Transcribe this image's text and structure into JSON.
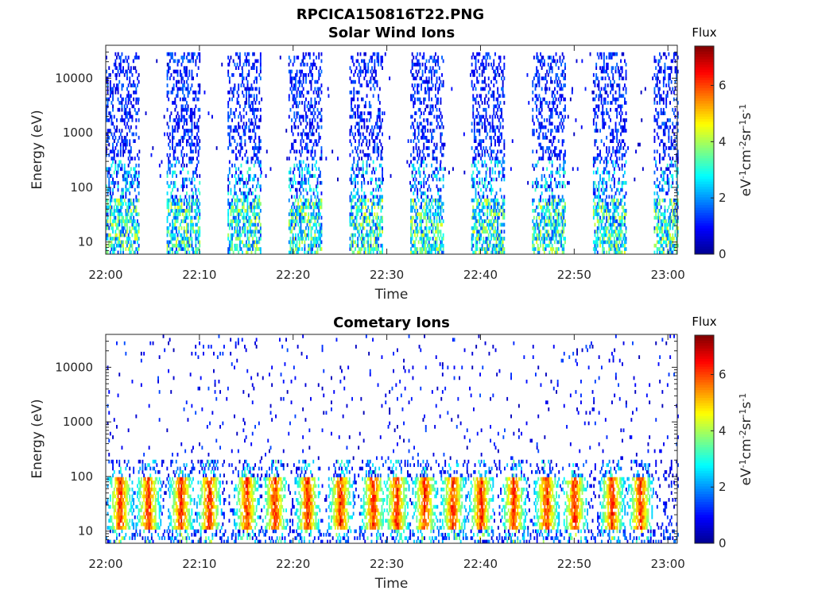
{
  "figure_title": "RPCICA150816T22.PNG",
  "colors": {
    "axis": "#262626",
    "colormap": "jet",
    "colormap_stops": [
      "#00008f",
      "#0000ff",
      "#0080ff",
      "#00ffff",
      "#80ff80",
      "#ffff00",
      "#ff8000",
      "#ff0000",
      "#800000"
    ]
  },
  "chart_data": [
    {
      "type": "heatmap",
      "title": "Solar Wind Ions",
      "xlabel": "Time",
      "ylabel": "Energy (eV)",
      "x_range_minutes": [
        0,
        61
      ],
      "x_ticks": [
        {
          "minute": 0,
          "label": "22:00"
        },
        {
          "minute": 10,
          "label": "22:10"
        },
        {
          "minute": 20,
          "label": "22:20"
        },
        {
          "minute": 30,
          "label": "22:30"
        },
        {
          "minute": 40,
          "label": "22:40"
        },
        {
          "minute": 50,
          "label": "22:50"
        },
        {
          "minute": 60,
          "label": "23:00"
        }
      ],
      "y_scale": "log",
      "y_range": [
        6,
        40000
      ],
      "y_ticks": [
        {
          "value": 10,
          "label": "10"
        },
        {
          "value": 100,
          "label": "100"
        },
        {
          "value": 1000,
          "label": "1000"
        },
        {
          "value": 10000,
          "label": "10000"
        }
      ],
      "colorbar": {
        "label": "Flux",
        "units": "eV^-1 cm^-2 sr^-1 s^-1",
        "range": [
          0,
          7.4
        ],
        "ticks": [
          "0",
          "2",
          "4",
          "6"
        ]
      },
      "bursts_start_minute": [
        0,
        6.5,
        13,
        19.5,
        26,
        32.5,
        39,
        45.5,
        52,
        58.5
      ],
      "burst_duration_minutes": 3.5,
      "burst_energy_range_eV": [
        6,
        30000
      ],
      "burst_flux_range": [
        0.5,
        4.5
      ]
    },
    {
      "type": "heatmap",
      "title": "Cometary Ions",
      "xlabel": "Time",
      "ylabel": "Energy (eV)",
      "x_range_minutes": [
        0,
        61
      ],
      "x_ticks": [
        {
          "minute": 0,
          "label": "22:00"
        },
        {
          "minute": 10,
          "label": "22:10"
        },
        {
          "minute": 20,
          "label": "22:20"
        },
        {
          "minute": 30,
          "label": "22:30"
        },
        {
          "minute": 40,
          "label": "22:40"
        },
        {
          "minute": 50,
          "label": "22:50"
        },
        {
          "minute": 60,
          "label": "23:00"
        }
      ],
      "y_scale": "log",
      "y_range": [
        6,
        40000
      ],
      "y_ticks": [
        {
          "value": 10,
          "label": "10"
        },
        {
          "value": 100,
          "label": "100"
        },
        {
          "value": 1000,
          "label": "1000"
        },
        {
          "value": 10000,
          "label": "10000"
        }
      ],
      "colorbar": {
        "label": "Flux",
        "units": "eV^-1 cm^-2 sr^-1 s^-1",
        "range": [
          0,
          7.4
        ],
        "ticks": [
          "0",
          "2",
          "4",
          "6"
        ]
      },
      "peak_band_energy_eV": [
        15,
        60
      ],
      "peak_flux": 7,
      "peak_minutes": [
        1.5,
        4.5,
        8,
        11,
        15,
        18,
        21.5,
        25,
        28.5,
        31,
        34,
        37,
        40,
        43.5,
        47,
        50,
        54,
        57
      ]
    }
  ]
}
